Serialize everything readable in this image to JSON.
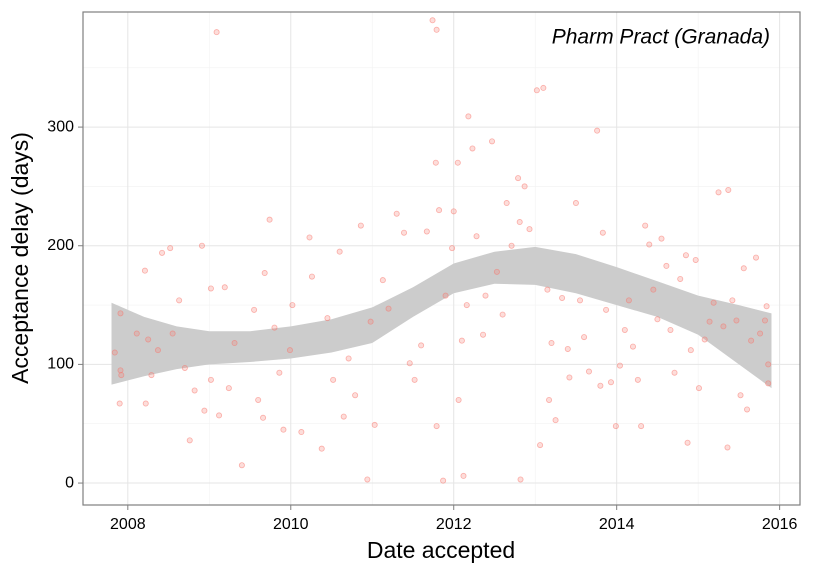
{
  "chart_data": {
    "type": "scatter",
    "annotation": "Pharm Pract (Granada)",
    "xlabel": "Date accepted",
    "ylabel": "Acceptance delay (days)",
    "xlim": [
      2007.45,
      2016.25
    ],
    "ylim": [
      -18.5,
      397
    ],
    "xticks": [
      2008,
      2010,
      2012,
      2014,
      2016
    ],
    "yticks": [
      0,
      100,
      200,
      300
    ],
    "grid": true,
    "minor_grid": true,
    "color": "#f8766d",
    "x": [
      2007.84,
      2007.9,
      2007.91,
      2007.91,
      2007.92,
      2008.11,
      2008.21,
      2008.22,
      2008.25,
      2008.29,
      2008.37,
      2008.42,
      2008.52,
      2008.55,
      2008.63,
      2008.7,
      2008.76,
      2008.82,
      2008.91,
      2008.94,
      2009.02,
      2009.02,
      2009.09,
      2009.12,
      2009.19,
      2009.24,
      2009.31,
      2009.4,
      2009.55,
      2009.6,
      2009.66,
      2009.68,
      2009.74,
      2009.8,
      2009.86,
      2009.91,
      2009.99,
      2010.02,
      2010.13,
      2010.23,
      2010.26,
      2010.38,
      2010.45,
      2010.52,
      2010.6,
      2010.65,
      2010.71,
      2010.79,
      2010.86,
      2010.94,
      2010.98,
      2011.03,
      2011.13,
      2011.2,
      2011.3,
      2011.39,
      2011.46,
      2011.52,
      2011.6,
      2011.67,
      2011.74,
      2011.79,
      2011.79,
      2011.78,
      2011.82,
      2011.87,
      2011.9,
      2011.98,
      2012.0,
      2012.05,
      2012.06,
      2012.1,
      2012.12,
      2012.16,
      2012.18,
      2012.23,
      2012.28,
      2012.36,
      2012.39,
      2012.47,
      2012.53,
      2012.6,
      2012.65,
      2012.71,
      2012.79,
      2012.81,
      2012.82,
      2012.87,
      2012.93,
      2013.02,
      2013.06,
      2013.1,
      2013.15,
      2013.17,
      2013.2,
      2013.25,
      2013.33,
      2013.4,
      2013.42,
      2013.5,
      2013.55,
      2013.6,
      2013.66,
      2013.76,
      2013.8,
      2013.83,
      2013.87,
      2013.93,
      2013.99,
      2014.04,
      2014.1,
      2014.15,
      2014.2,
      2014.26,
      2014.3,
      2014.35,
      2014.4,
      2014.45,
      2014.5,
      2014.55,
      2014.61,
      2014.66,
      2014.71,
      2014.78,
      2014.85,
      2014.87,
      2014.91,
      2014.97,
      2015.01,
      2015.08,
      2015.14,
      2015.19,
      2015.25,
      2015.31,
      2015.36,
      2015.37,
      2015.42,
      2015.47,
      2015.52,
      2015.56,
      2015.6,
      2015.65,
      2015.71,
      2015.76,
      2015.82,
      2015.84,
      2015.86,
      2015.86
    ],
    "values": [
      110,
      67,
      95,
      143,
      91,
      126,
      179,
      67,
      121,
      91,
      112,
      194,
      198,
      126,
      154,
      97,
      36,
      78,
      200,
      61,
      87,
      164,
      380,
      57,
      165,
      80,
      118,
      15,
      146,
      70,
      55,
      177,
      222,
      131,
      93,
      45,
      112,
      150,
      43,
      207,
      174,
      29,
      139,
      87,
      195,
      56,
      105,
      74,
      217,
      3,
      136,
      49,
      171,
      147,
      227,
      211,
      101,
      87,
      116,
      212,
      390,
      382,
      48,
      270,
      230,
      2,
      158,
      198,
      229,
      270,
      70,
      120,
      6,
      150,
      309,
      282,
      208,
      125,
      158,
      288,
      178,
      142,
      236,
      200,
      257,
      220,
      3,
      250,
      214,
      331,
      32,
      333,
      163,
      70,
      118,
      53,
      156,
      113,
      89,
      236,
      154,
      123,
      94,
      297,
      82,
      211,
      146,
      85,
      48,
      99,
      129,
      154,
      115,
      87,
      48,
      217,
      201,
      163,
      138,
      206,
      183,
      129,
      93,
      172,
      192,
      34,
      112,
      188,
      80,
      121,
      136,
      152,
      245,
      132,
      30,
      247,
      154,
      137,
      74,
      181,
      62,
      120,
      190,
      126,
      137,
      149,
      84,
      100
    ],
    "band": {
      "color": "#cccccc",
      "x": [
        2007.8,
        2008.2,
        2008.6,
        2009.0,
        2009.5,
        2010.0,
        2010.5,
        2011.0,
        2011.5,
        2012.0,
        2012.5,
        2013.0,
        2013.5,
        2014.0,
        2014.5,
        2015.0,
        2015.5,
        2015.9
      ],
      "lower": [
        83,
        90,
        96,
        100,
        102,
        105,
        110,
        118,
        140,
        160,
        168,
        167,
        160,
        150,
        140,
        125,
        100,
        80
      ],
      "upper": [
        152,
        140,
        132,
        128,
        128,
        132,
        138,
        148,
        165,
        185,
        195,
        199,
        193,
        182,
        170,
        158,
        150,
        143
      ]
    }
  }
}
